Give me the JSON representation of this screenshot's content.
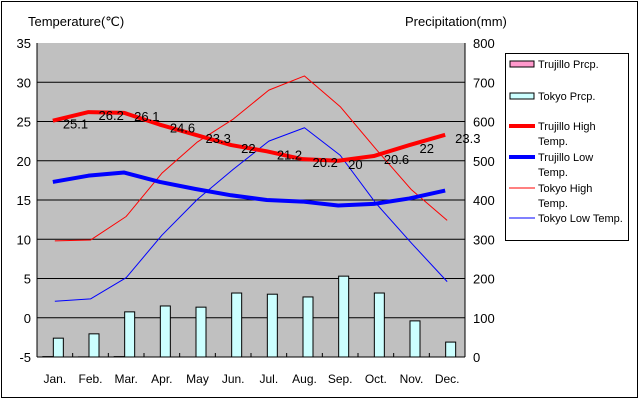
{
  "chart_data": {
    "type": "bar",
    "left_axis_title": "Temperature(℃)",
    "right_axis_title": "Precipitation(mm)",
    "categories": [
      "Jan.",
      "Feb.",
      "Mar.",
      "Apr.",
      "May",
      "Jun.",
      "Jul.",
      "Aug.",
      "Sep.",
      "Oct.",
      "Nov.",
      "Dec."
    ],
    "left_ylim": [
      -5,
      35
    ],
    "left_ticks": [
      "-5",
      "0",
      "5",
      "10",
      "15",
      "20",
      "25",
      "30",
      "35"
    ],
    "right_ylim": [
      0,
      800
    ],
    "right_ticks": [
      "0",
      "100",
      "200",
      "300",
      "400",
      "500",
      "600",
      "700",
      "800"
    ],
    "grid": true,
    "legend_position": "right",
    "series": [
      {
        "name": "Trujillo Prcp.",
        "kind": "bar",
        "axis": "right",
        "color": "#ff99cc",
        "values": [
          1,
          0.3,
          1,
          0,
          0,
          0,
          0,
          0,
          0,
          0,
          0,
          0
        ]
      },
      {
        "name": "Tokyo Prcp.",
        "kind": "bar",
        "axis": "right",
        "color": "#ccffff",
        "values": [
          48,
          59,
          115,
          130,
          127,
          163,
          160,
          153,
          206,
          163,
          92,
          38
        ]
      },
      {
        "name": "Trujillo High Temp.",
        "kind": "line",
        "axis": "left",
        "color": "#ff0000",
        "width": 4,
        "values": [
          25.1,
          26.2,
          26.1,
          24.6,
          23.3,
          22,
          21.2,
          20.2,
          20,
          20.6,
          22,
          23.3
        ],
        "labels": [
          "25.1",
          "26.2",
          "26.1",
          "24.6",
          "23.3",
          "22",
          "21.2",
          "20.2",
          "20",
          "20.6",
          "22",
          "23.3"
        ]
      },
      {
        "name": "Trujillo Low Temp.",
        "kind": "line",
        "axis": "left",
        "color": "#0000ff",
        "width": 4,
        "values": [
          17.3,
          18.1,
          18.5,
          17.3,
          16.4,
          15.6,
          15.0,
          14.8,
          14.3,
          14.5,
          15.2,
          16.2
        ]
      },
      {
        "name": "Tokyo High Temp.",
        "kind": "line",
        "axis": "left",
        "color": "#ff0000",
        "width": 1,
        "values": [
          9.8,
          9.9,
          12.9,
          18.4,
          22.4,
          25.3,
          29.0,
          30.8,
          26.9,
          21.5,
          16.3,
          12.4
        ]
      },
      {
        "name": "Tokyo Low Temp.",
        "kind": "line",
        "axis": "left",
        "color": "#0000ff",
        "width": 1,
        "values": [
          2.1,
          2.4,
          5.1,
          10.5,
          15.1,
          18.9,
          22.5,
          24.2,
          20.7,
          14.6,
          9.5,
          4.6
        ]
      }
    ],
    "legend": [
      "Trujillo Prcp.",
      "Tokyo Prcp.",
      "Trujillo High Temp.",
      "Trujillo Low Temp.",
      "Tokyo High Temp.",
      "Tokyo Low Temp."
    ]
  }
}
